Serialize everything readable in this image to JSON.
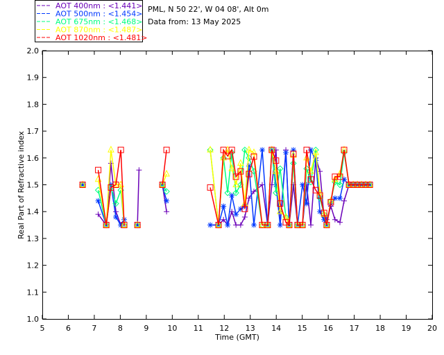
{
  "chart_data": {
    "type": "line",
    "title_lines": [
      "PML, N 50 22', W 04 08', Alt 0m",
      "Data from: 13 May 2025"
    ],
    "xlabel": "Time (GMT)",
    "ylabel": "Real Part of Refractive index",
    "xlim": [
      5,
      20
    ],
    "ylim": [
      1.0,
      2.0
    ],
    "xticks": [
      "5",
      "6",
      "7",
      "8",
      "9",
      "10",
      "11",
      "12",
      "13",
      "14",
      "15",
      "16",
      "17",
      "18",
      "19",
      "20"
    ],
    "yticks": [
      "1.0",
      "1.1",
      "1.2",
      "1.3",
      "1.4",
      "1.5",
      "1.6",
      "1.7",
      "1.8",
      "1.9",
      "2.0"
    ],
    "grid": false,
    "legend_position": "top-left, outside plot",
    "x": [
      6.55,
      7.15,
      7.46,
      7.64,
      7.83,
      8.02,
      8.15,
      8.66,
      8.72,
      9.62,
      9.78,
      11.46,
      11.78,
      11.97,
      12.13,
      12.29,
      12.45,
      12.63,
      12.79,
      12.95,
      13.14,
      13.46,
      13.67,
      13.83,
      13.99,
      14.15,
      14.37,
      14.5,
      14.66,
      14.82,
      15.01,
      15.17,
      15.33,
      15.52,
      15.68,
      15.84,
      15.94,
      16.1,
      16.26,
      16.45,
      16.61,
      16.8,
      16.96,
      17.12,
      17.28,
      17.44,
      17.6
    ],
    "series": [
      {
        "name": "AOT  400nm : <1.441>",
        "color": "#6a00b8",
        "marker": "plus",
        "values": [
          1.5,
          1.39,
          1.35,
          1.58,
          1.4,
          1.35,
          1.35,
          1.35,
          1.555,
          1.5,
          1.4,
          1.35,
          1.35,
          1.37,
          1.35,
          1.4,
          1.35,
          1.35,
          1.38,
          1.45,
          1.475,
          1.5,
          1.35,
          1.5,
          1.63,
          1.35,
          1.63,
          1.35,
          1.5,
          1.35,
          1.35,
          1.5,
          1.35,
          1.6,
          1.55,
          1.38,
          1.37,
          1.42,
          1.37,
          1.36,
          1.44,
          1.5,
          1.5,
          1.5,
          1.5,
          1.5,
          1.5
        ]
      },
      {
        "name": "AOT  500nm : <1.454>",
        "color": "#0038ff",
        "marker": "asterisk",
        "values": [
          1.5,
          1.44,
          1.35,
          1.5,
          1.38,
          1.35,
          1.37,
          1.35,
          null,
          1.5,
          1.44,
          1.35,
          1.35,
          1.42,
          1.35,
          1.46,
          1.39,
          1.41,
          1.42,
          1.57,
          1.35,
          1.63,
          1.35,
          1.63,
          1.5,
          1.35,
          1.62,
          1.35,
          1.63,
          1.35,
          1.5,
          1.43,
          1.63,
          1.59,
          1.4,
          1.37,
          1.35,
          1.43,
          1.45,
          1.45,
          1.52,
          1.5,
          1.5,
          1.5,
          1.5,
          1.5,
          1.5
        ]
      },
      {
        "name": "AOT  675nm : <1.468>",
        "color": "#00ff80",
        "marker": "diamond",
        "values": [
          1.5,
          1.48,
          1.35,
          1.49,
          1.43,
          1.48,
          1.35,
          1.35,
          null,
          1.5,
          1.475,
          1.63,
          1.35,
          1.6,
          1.47,
          1.62,
          1.47,
          1.5,
          1.63,
          1.6,
          1.55,
          1.35,
          1.35,
          1.63,
          1.47,
          1.56,
          1.38,
          1.35,
          1.58,
          1.35,
          1.35,
          1.56,
          1.51,
          1.63,
          1.45,
          1.39,
          1.35,
          1.44,
          1.51,
          1.5,
          1.62,
          1.5,
          1.5,
          1.5,
          1.5,
          1.5,
          1.5
        ]
      },
      {
        "name": "AOT  870nm : <1.487>",
        "color": "#ffff00",
        "marker": "triangle",
        "values": [
          1.5,
          1.52,
          1.35,
          1.63,
          1.5,
          1.5,
          1.35,
          1.35,
          null,
          1.5,
          1.54,
          1.63,
          1.35,
          1.6,
          1.63,
          1.56,
          1.5,
          1.58,
          1.43,
          1.63,
          1.62,
          1.35,
          1.35,
          1.63,
          1.55,
          1.4,
          1.38,
          1.35,
          1.61,
          1.35,
          1.35,
          1.6,
          1.55,
          1.62,
          1.47,
          1.39,
          1.35,
          1.44,
          1.52,
          1.54,
          1.63,
          1.5,
          1.5,
          1.5,
          1.5,
          1.5,
          1.5
        ]
      },
      {
        "name": "AOT 1020nm : <1.481>",
        "color": "#ff0000",
        "marker": "square",
        "values": [
          1.5,
          1.555,
          1.35,
          1.49,
          1.5,
          1.63,
          1.35,
          1.35,
          null,
          1.5,
          1.63,
          1.49,
          1.35,
          1.63,
          1.607,
          1.63,
          1.53,
          1.55,
          1.41,
          1.54,
          1.605,
          1.35,
          1.35,
          1.63,
          1.59,
          1.43,
          1.36,
          1.35,
          1.615,
          1.35,
          1.35,
          1.63,
          1.52,
          1.48,
          1.46,
          1.395,
          1.35,
          1.435,
          1.53,
          1.53,
          1.63,
          1.5,
          1.5,
          1.5,
          1.5,
          1.5,
          1.5
        ]
      }
    ]
  }
}
